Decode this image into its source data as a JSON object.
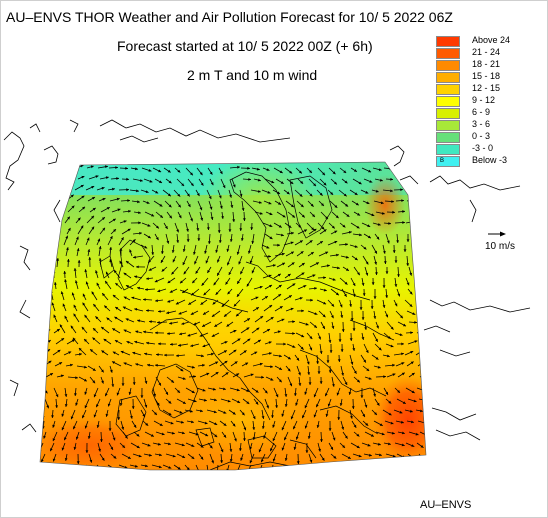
{
  "titles": {
    "line1": "AU–ENVS THOR Weather and Air Pollution Forecast for 10/ 5 2022  06Z",
    "line2": "Forecast started at 10/ 5 2022  00Z (+ 6h)",
    "line3": "2 m T and 10 m wind"
  },
  "legend": {
    "items": [
      {
        "label": "Above   24",
        "color": "#ff3a00"
      },
      {
        "label": "21 -  24",
        "color": "#ff5a00"
      },
      {
        "label": "18 -  21",
        "color": "#ff8a00"
      },
      {
        "label": "15 -  18",
        "color": "#ffae00"
      },
      {
        "label": "12 -  15",
        "color": "#ffd200"
      },
      {
        "label": "9 -  12",
        "color": "#ffff00"
      },
      {
        "label": "6 -   9",
        "color": "#d8f000"
      },
      {
        "label": "3 -   6",
        "color": "#a8e838"
      },
      {
        "label": "0 -   3",
        "color": "#66e07a"
      },
      {
        "label": "-3 -   0",
        "color": "#40e8c0"
      },
      {
        "label": "Below   -3",
        "color": "#40f0f0",
        "box_text": "B"
      }
    ]
  },
  "wind_reference": {
    "label": "10 m/s"
  },
  "footer": "AU–ENVS",
  "colors": {
    "border": "#8a8a8a",
    "arrow": "#000000",
    "coast": "#000000"
  }
}
